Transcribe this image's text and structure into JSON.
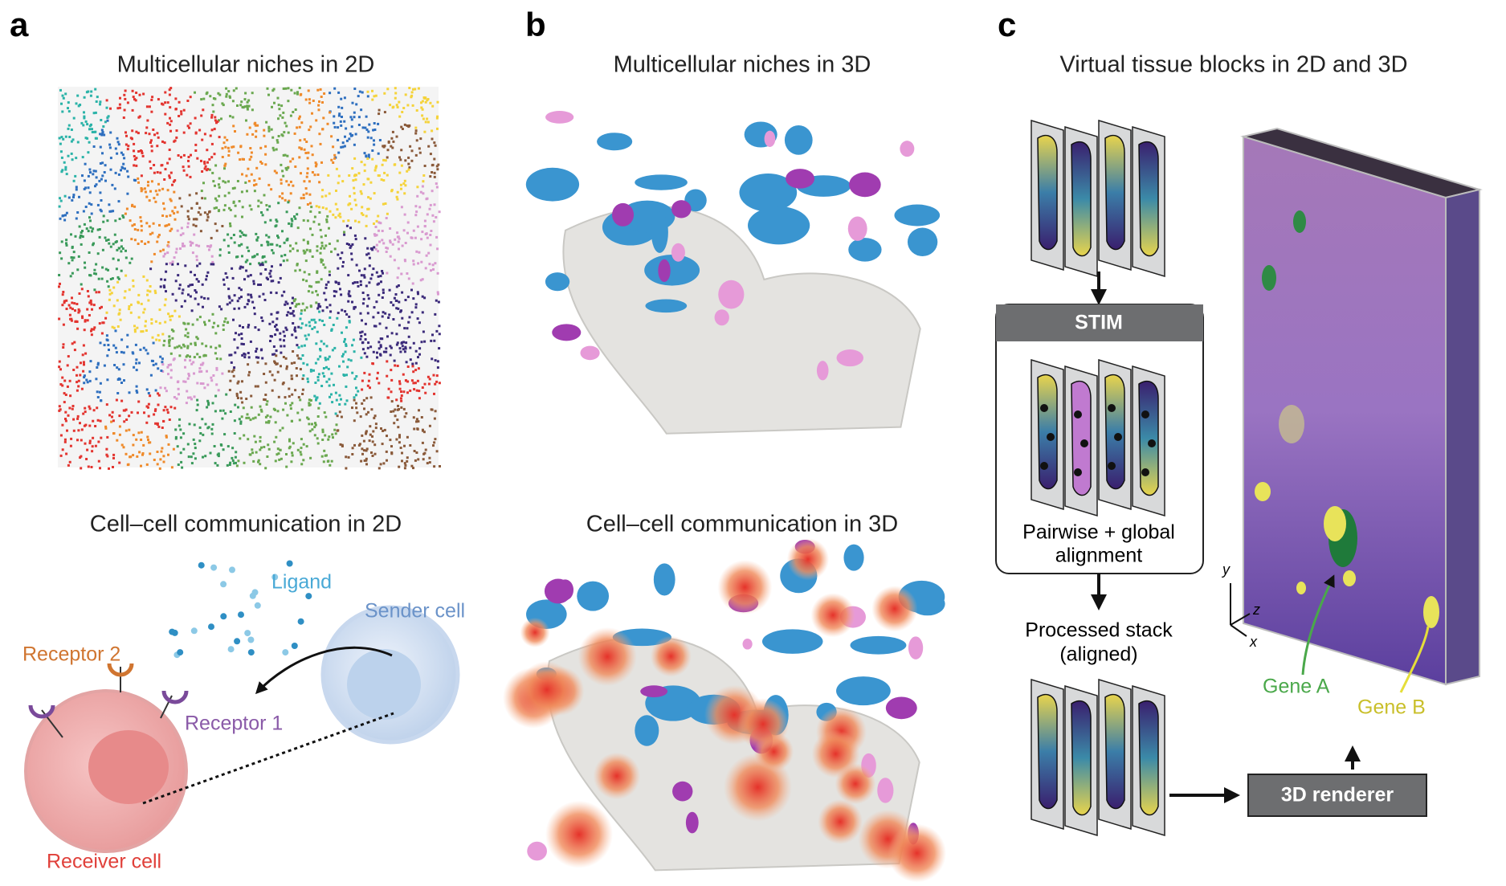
{
  "panel_a": {
    "label": "a",
    "title_top": "Multicellular niches in 2D",
    "title_bottom": "Cell–cell communication in 2D",
    "ligand": "Ligand",
    "sender": "Sender cell",
    "receptor2": "Receptor 2",
    "receptor1": "Receptor 1",
    "receiver": "Receiver cell"
  },
  "panel_b": {
    "label": "b",
    "title_top": "Multicellular niches in 3D",
    "title_bottom": "Cell–cell communication in 3D"
  },
  "panel_c": {
    "label": "c",
    "title": "Virtual tissue blocks in 2D and 3D",
    "stim": "STIM",
    "alignment_lines": [
      "Pairwise + global",
      "alignment"
    ],
    "processed_lines": [
      "Processed stack",
      "(aligned)"
    ],
    "renderer": "3D renderer",
    "axes": {
      "y": "y",
      "z": "z",
      "x": "x"
    },
    "gene_a": "Gene A",
    "gene_b": "Gene B"
  }
}
